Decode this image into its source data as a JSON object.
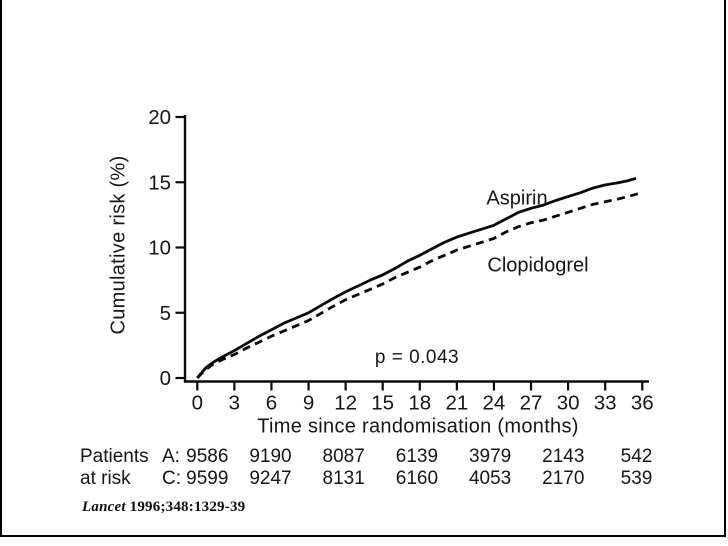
{
  "frame": {
    "border_color": "#000000",
    "background": "#ffffff"
  },
  "chart_data": {
    "type": "line",
    "title": "",
    "xlabel": "Time since randomisation (months)",
    "ylabel": "Cumulative risk (%)",
    "xlim": [
      0,
      36
    ],
    "ylim": [
      0,
      20
    ],
    "xticks": [
      0,
      3,
      6,
      9,
      12,
      15,
      18,
      21,
      24,
      27,
      30,
      33,
      36
    ],
    "yticks": [
      0,
      5,
      10,
      15,
      20
    ],
    "grid": false,
    "legend_position": "inline-labels",
    "annotation": "p = 0.043",
    "line_color": "#0a0a0a",
    "series": [
      {
        "name": "Aspirin",
        "style": "solid",
        "points": [
          [
            0,
            0
          ],
          [
            0.3,
            0.35
          ],
          [
            0.7,
            0.8
          ],
          [
            1.2,
            1.15
          ],
          [
            2,
            1.6
          ],
          [
            3,
            2.1
          ],
          [
            4,
            2.65
          ],
          [
            5,
            3.2
          ],
          [
            6,
            3.7
          ],
          [
            7,
            4.2
          ],
          [
            8,
            4.6
          ],
          [
            9,
            5.0
          ],
          [
            10,
            5.55
          ],
          [
            11,
            6.1
          ],
          [
            12,
            6.6
          ],
          [
            13,
            7.05
          ],
          [
            14,
            7.5
          ],
          [
            15,
            7.9
          ],
          [
            16,
            8.4
          ],
          [
            17,
            8.95
          ],
          [
            18,
            9.4
          ],
          [
            19,
            9.9
          ],
          [
            20,
            10.4
          ],
          [
            21,
            10.8
          ],
          [
            22,
            11.1
          ],
          [
            23,
            11.4
          ],
          [
            24,
            11.7
          ],
          [
            25,
            12.2
          ],
          [
            26,
            12.7
          ],
          [
            27,
            13.0
          ],
          [
            28,
            13.25
          ],
          [
            29,
            13.6
          ],
          [
            30,
            13.9
          ],
          [
            31,
            14.2
          ],
          [
            32,
            14.55
          ],
          [
            33,
            14.8
          ],
          [
            34,
            14.95
          ],
          [
            34.8,
            15.1
          ],
          [
            35.5,
            15.3
          ]
        ]
      },
      {
        "name": "Clopidogrel",
        "style": "dashed",
        "points": [
          [
            0,
            0
          ],
          [
            0.3,
            0.3
          ],
          [
            0.7,
            0.65
          ],
          [
            1.2,
            1.0
          ],
          [
            2,
            1.4
          ],
          [
            3,
            1.8
          ],
          [
            4,
            2.3
          ],
          [
            5,
            2.75
          ],
          [
            6,
            3.2
          ],
          [
            7,
            3.6
          ],
          [
            8,
            4.0
          ],
          [
            9,
            4.4
          ],
          [
            10,
            4.95
          ],
          [
            11,
            5.5
          ],
          [
            12,
            6.0
          ],
          [
            13,
            6.4
          ],
          [
            14,
            6.8
          ],
          [
            15,
            7.2
          ],
          [
            16,
            7.7
          ],
          [
            17,
            8.1
          ],
          [
            18,
            8.5
          ],
          [
            19,
            9.0
          ],
          [
            20,
            9.4
          ],
          [
            21,
            9.8
          ],
          [
            22,
            10.1
          ],
          [
            23,
            10.4
          ],
          [
            24,
            10.7
          ],
          [
            25,
            11.2
          ],
          [
            26,
            11.6
          ],
          [
            27,
            11.9
          ],
          [
            28,
            12.1
          ],
          [
            29,
            12.4
          ],
          [
            30,
            12.7
          ],
          [
            31,
            13.0
          ],
          [
            32,
            13.3
          ],
          [
            33,
            13.5
          ],
          [
            34,
            13.7
          ],
          [
            35,
            13.95
          ],
          [
            35.8,
            14.15
          ]
        ]
      }
    ]
  },
  "risk_table": {
    "row_label_line1": "Patients",
    "row_label_line2": "at risk",
    "months": [
      0,
      6,
      12,
      18,
      24,
      30,
      36
    ],
    "rows": [
      {
        "prefix": "A:",
        "values": [
          "9586",
          "9190",
          "8087",
          "6139",
          "3979",
          "2143",
          "542"
        ]
      },
      {
        "prefix": "C:",
        "values": [
          "9599",
          "9247",
          "8131",
          "6160",
          "4053",
          "2170",
          "539"
        ]
      }
    ]
  },
  "citation": {
    "journal": "Lancet",
    "ref": " 1996;348:1329-39"
  }
}
